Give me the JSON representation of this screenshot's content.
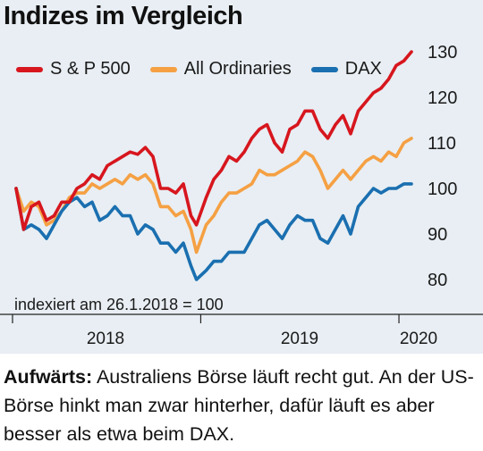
{
  "chart_data": {
    "type": "line",
    "title": "Indizes im Vergleich",
    "note": "indexiert am 26.1.2018 = 100",
    "x_labels": [
      "2018",
      "2019",
      "2020"
    ],
    "ylim": [
      76,
      132
    ],
    "y_ticks": [
      80,
      90,
      100,
      110,
      120,
      130
    ],
    "y_tick_position": "right",
    "grid": false,
    "legend_position": "top-left",
    "x_start": "2018-01-26",
    "x_end": "2020-01-24",
    "x_year_marks": [
      "2018-01-01",
      "2019-01-01",
      "2020-01-01"
    ],
    "series": [
      {
        "name": "S & P 500",
        "color": "#d7161e",
        "points": [
          [
            "2018-01-26",
            100
          ],
          [
            "2018-02-09",
            91
          ],
          [
            "2018-02-23",
            96
          ],
          [
            "2018-03-09",
            97
          ],
          [
            "2018-03-23",
            93
          ],
          [
            "2018-04-06",
            94
          ],
          [
            "2018-04-20",
            97
          ],
          [
            "2018-05-04",
            97
          ],
          [
            "2018-05-18",
            100
          ],
          [
            "2018-06-01",
            101
          ],
          [
            "2018-06-15",
            103
          ],
          [
            "2018-06-29",
            102
          ],
          [
            "2018-07-13",
            105
          ],
          [
            "2018-07-27",
            106
          ],
          [
            "2018-08-10",
            107
          ],
          [
            "2018-08-24",
            108
          ],
          [
            "2018-09-07",
            107.5
          ],
          [
            "2018-09-21",
            109
          ],
          [
            "2018-10-05",
            107
          ],
          [
            "2018-10-19",
            100
          ],
          [
            "2018-11-02",
            100
          ],
          [
            "2018-11-16",
            99
          ],
          [
            "2018-11-30",
            101
          ],
          [
            "2018-12-14",
            94
          ],
          [
            "2018-12-24",
            92
          ],
          [
            "2019-01-11",
            98
          ],
          [
            "2019-01-25",
            102
          ],
          [
            "2019-02-08",
            104
          ],
          [
            "2019-02-22",
            107
          ],
          [
            "2019-03-08",
            106
          ],
          [
            "2019-03-22",
            108
          ],
          [
            "2019-04-05",
            111
          ],
          [
            "2019-04-19",
            113
          ],
          [
            "2019-05-03",
            114
          ],
          [
            "2019-05-17",
            110
          ],
          [
            "2019-05-31",
            108
          ],
          [
            "2019-06-14",
            113
          ],
          [
            "2019-06-28",
            114
          ],
          [
            "2019-07-12",
            117
          ],
          [
            "2019-07-26",
            117
          ],
          [
            "2019-08-09",
            113
          ],
          [
            "2019-08-23",
            111
          ],
          [
            "2019-09-06",
            114
          ],
          [
            "2019-09-20",
            116
          ],
          [
            "2019-10-04",
            112
          ],
          [
            "2019-10-18",
            117
          ],
          [
            "2019-11-01",
            119
          ],
          [
            "2019-11-15",
            121
          ],
          [
            "2019-11-29",
            122
          ],
          [
            "2019-12-13",
            124
          ],
          [
            "2019-12-27",
            127
          ],
          [
            "2020-01-10",
            128
          ],
          [
            "2020-01-24",
            130
          ]
        ]
      },
      {
        "name": "All Ordinaries",
        "color": "#f5a043",
        "points": [
          [
            "2018-01-26",
            100
          ],
          [
            "2018-02-09",
            95
          ],
          [
            "2018-02-23",
            97
          ],
          [
            "2018-03-09",
            96
          ],
          [
            "2018-03-23",
            92
          ],
          [
            "2018-04-06",
            93
          ],
          [
            "2018-04-20",
            95
          ],
          [
            "2018-05-04",
            98
          ],
          [
            "2018-05-18",
            99
          ],
          [
            "2018-06-01",
            99
          ],
          [
            "2018-06-15",
            101
          ],
          [
            "2018-06-29",
            100
          ],
          [
            "2018-07-13",
            101
          ],
          [
            "2018-07-27",
            102
          ],
          [
            "2018-08-10",
            101
          ],
          [
            "2018-08-24",
            103
          ],
          [
            "2018-09-07",
            102
          ],
          [
            "2018-09-21",
            103
          ],
          [
            "2018-10-05",
            101
          ],
          [
            "2018-10-19",
            96
          ],
          [
            "2018-11-02",
            96
          ],
          [
            "2018-11-16",
            94
          ],
          [
            "2018-11-30",
            95
          ],
          [
            "2018-12-14",
            91
          ],
          [
            "2018-12-24",
            86
          ],
          [
            "2019-01-11",
            92
          ],
          [
            "2019-01-25",
            94
          ],
          [
            "2019-02-08",
            97
          ],
          [
            "2019-02-22",
            99
          ],
          [
            "2019-03-08",
            99
          ],
          [
            "2019-03-22",
            100
          ],
          [
            "2019-04-05",
            101
          ],
          [
            "2019-04-19",
            104
          ],
          [
            "2019-05-03",
            103
          ],
          [
            "2019-05-17",
            103
          ],
          [
            "2019-05-31",
            104
          ],
          [
            "2019-06-14",
            105
          ],
          [
            "2019-06-28",
            106
          ],
          [
            "2019-07-12",
            108
          ],
          [
            "2019-07-26",
            107
          ],
          [
            "2019-08-09",
            104
          ],
          [
            "2019-08-23",
            100
          ],
          [
            "2019-09-06",
            102
          ],
          [
            "2019-09-20",
            104
          ],
          [
            "2019-10-04",
            102
          ],
          [
            "2019-10-18",
            104
          ],
          [
            "2019-11-01",
            106
          ],
          [
            "2019-11-15",
            107
          ],
          [
            "2019-11-29",
            106
          ],
          [
            "2019-12-13",
            108
          ],
          [
            "2019-12-27",
            107
          ],
          [
            "2020-01-10",
            110
          ],
          [
            "2020-01-24",
            111
          ]
        ]
      },
      {
        "name": "DAX",
        "color": "#1a6fb0",
        "points": [
          [
            "2018-01-26",
            100
          ],
          [
            "2018-02-09",
            91
          ],
          [
            "2018-02-23",
            92
          ],
          [
            "2018-03-09",
            91
          ],
          [
            "2018-03-23",
            89
          ],
          [
            "2018-04-06",
            92
          ],
          [
            "2018-04-20",
            95
          ],
          [
            "2018-05-04",
            97
          ],
          [
            "2018-05-18",
            98
          ],
          [
            "2018-06-01",
            96
          ],
          [
            "2018-06-15",
            97
          ],
          [
            "2018-06-29",
            93
          ],
          [
            "2018-07-13",
            94
          ],
          [
            "2018-07-27",
            96
          ],
          [
            "2018-08-10",
            94
          ],
          [
            "2018-08-24",
            94
          ],
          [
            "2018-09-07",
            90
          ],
          [
            "2018-09-21",
            92
          ],
          [
            "2018-10-05",
            91
          ],
          [
            "2018-10-19",
            88
          ],
          [
            "2018-11-02",
            88
          ],
          [
            "2018-11-16",
            86
          ],
          [
            "2018-11-30",
            88
          ],
          [
            "2018-12-14",
            83
          ],
          [
            "2018-12-24",
            80
          ],
          [
            "2019-01-11",
            82
          ],
          [
            "2019-01-25",
            84
          ],
          [
            "2019-02-08",
            84
          ],
          [
            "2019-02-22",
            86
          ],
          [
            "2019-03-08",
            86
          ],
          [
            "2019-03-22",
            86
          ],
          [
            "2019-04-05",
            89
          ],
          [
            "2019-04-19",
            92
          ],
          [
            "2019-05-03",
            93
          ],
          [
            "2019-05-17",
            91
          ],
          [
            "2019-05-31",
            89
          ],
          [
            "2019-06-14",
            92
          ],
          [
            "2019-06-28",
            94
          ],
          [
            "2019-07-12",
            93
          ],
          [
            "2019-07-26",
            93
          ],
          [
            "2019-08-09",
            89
          ],
          [
            "2019-08-23",
            88
          ],
          [
            "2019-09-06",
            91
          ],
          [
            "2019-09-20",
            94
          ],
          [
            "2019-10-04",
            90
          ],
          [
            "2019-10-18",
            96
          ],
          [
            "2019-11-01",
            98
          ],
          [
            "2019-11-15",
            100
          ],
          [
            "2019-11-29",
            99
          ],
          [
            "2019-12-13",
            100
          ],
          [
            "2019-12-27",
            100
          ],
          [
            "2020-01-10",
            101
          ],
          [
            "2020-01-24",
            101
          ]
        ]
      }
    ]
  },
  "caption": {
    "lead": "Aufwärts:",
    "text": " Australiens Börse läuft recht gut. An der US-Börse hinkt man zwar hinterher, dafür läuft es aber besser als etwa beim DAX."
  }
}
